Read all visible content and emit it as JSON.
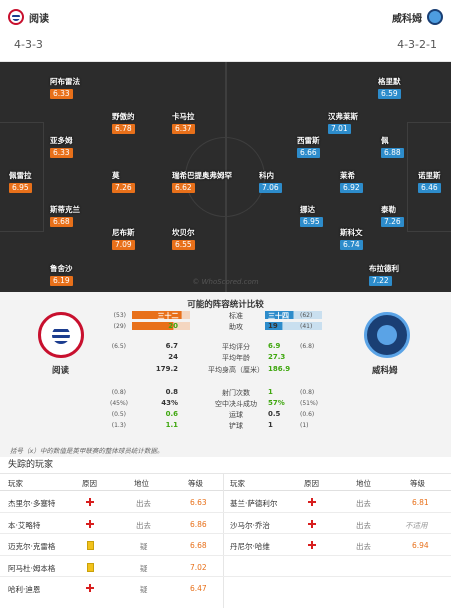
{
  "header": {
    "home_team": "阅读",
    "away_team": "威科姆",
    "home_formation": "4-3-3",
    "away_formation": "4-3-2-1"
  },
  "pitch": {
    "watermark": "© WhoScored.com",
    "home_players": [
      {
        "name": "阿布雷法",
        "rating": "6.33"
      },
      {
        "name": "野傲的",
        "rating": "6.78"
      },
      {
        "name": "卡马拉",
        "rating": "6.37"
      },
      {
        "name": "亚多姆",
        "rating": "6.33"
      },
      {
        "name": "佩雷拉",
        "rating": "6.95"
      },
      {
        "name": "莫",
        "rating": "7.26"
      },
      {
        "name": "瑞希巴提奥弗姆罕",
        "rating": "6.62"
      },
      {
        "name": "斯蒂克兰",
        "rating": "6.68"
      },
      {
        "name": "尼布斯",
        "rating": "7.09"
      },
      {
        "name": "坎贝尔",
        "rating": "6.55"
      },
      {
        "name": "鲁舍沙",
        "rating": "6.19"
      }
    ],
    "away_players": [
      {
        "name": "格里默",
        "rating": "6.59"
      },
      {
        "name": "汉弗莱斯",
        "rating": "7.01"
      },
      {
        "name": "西雷斯",
        "rating": "6.66"
      },
      {
        "name": "佩",
        "rating": "6.88"
      },
      {
        "name": "科内",
        "rating": "7.06"
      },
      {
        "name": "莱希",
        "rating": "6.92"
      },
      {
        "name": "诺里斯",
        "rating": "6.46"
      },
      {
        "name": "挪达",
        "rating": "6.95"
      },
      {
        "name": "斯科文",
        "rating": "6.74"
      },
      {
        "name": "泰勒",
        "rating": "7.26"
      },
      {
        "name": "布拉德利",
        "rating": "7.22"
      }
    ]
  },
  "comparison": {
    "title": "可能的阵容统计比较",
    "home_team": "阅读",
    "away_team": "威科姆",
    "rows": [
      {
        "label": "标准",
        "home_small": "(53)",
        "home": "三十二",
        "away": "三十四",
        "away_small": "(62)",
        "home_green": false,
        "away_green": false
      },
      {
        "label": "助攻",
        "home_small": "(29)",
        "home": "20",
        "away": "19",
        "away_small": "(41)",
        "home_green": true,
        "away_green": false
      },
      {
        "label": "平均评分",
        "home_small": "(6.5)",
        "home": "6.7",
        "away": "6.9",
        "away_small": "(6.8)",
        "home_green": false,
        "away_green": true
      },
      {
        "label": "平均年龄",
        "home_small": "",
        "home": "24",
        "away": "27.3",
        "away_small": "",
        "home_green": false,
        "away_green": true
      },
      {
        "label": "平均身高（厘米）",
        "home_small": "",
        "home": "179.2",
        "away": "186.9",
        "away_small": "",
        "home_green": false,
        "away_green": true
      },
      {
        "label": "射门次数",
        "home_small": "(0.8)",
        "home": "0.8",
        "away": "1",
        "away_small": "(0.8)",
        "home_green": false,
        "away_green": true
      },
      {
        "label": "空中决斗成功",
        "home_small": "(45%)",
        "home": "43%",
        "away": "57%",
        "away_small": "(51%)",
        "home_green": false,
        "away_green": true
      },
      {
        "label": "运球",
        "home_small": "(0.5)",
        "home": "0.6",
        "away": "0.5",
        "away_small": "(0.6)",
        "home_green": true,
        "away_green": false
      },
      {
        "label": "铲球",
        "home_small": "(1.3)",
        "home": "1.1",
        "away": "1",
        "away_small": "(1)",
        "home_green": true,
        "away_green": false
      }
    ],
    "bars": {
      "home_goals": 32,
      "away_goals": 34,
      "home_assists": 20,
      "away_assists": 19
    },
    "footnote": "括号（x）中的数值是英甲联赛的整体球员统计数据。"
  },
  "missing": {
    "title": "失踪的玩家",
    "headers": {
      "player": "玩家",
      "reason": "原因",
      "status": "地位",
      "rating": "等级"
    },
    "home": [
      {
        "name": "杰里尔·多塞特",
        "reason": "injury",
        "status": "出去",
        "rating": "6.63"
      },
      {
        "name": "本·艾略特",
        "reason": "injury",
        "status": "出去",
        "rating": "6.86"
      },
      {
        "name": "迈克尔·克雷格",
        "reason": "doubt",
        "status": "疑",
        "rating": "6.68"
      },
      {
        "name": "阿马杜·姆本格",
        "reason": "doubt",
        "status": "疑",
        "rating": "7.02"
      },
      {
        "name": "哈利·迪恩",
        "reason": "injury",
        "status": "疑",
        "rating": "6.47"
      }
    ],
    "away": [
      {
        "name": "基兰·萨德利尔",
        "reason": "injury",
        "status": "出去",
        "rating": "6.81"
      },
      {
        "name": "沙马尔·乔治",
        "reason": "injury",
        "status": "出去",
        "rating": "不适用"
      },
      {
        "name": "丹尼尔·哈维",
        "reason": "injury",
        "status": "出去",
        "rating": "6.94"
      }
    ]
  }
}
